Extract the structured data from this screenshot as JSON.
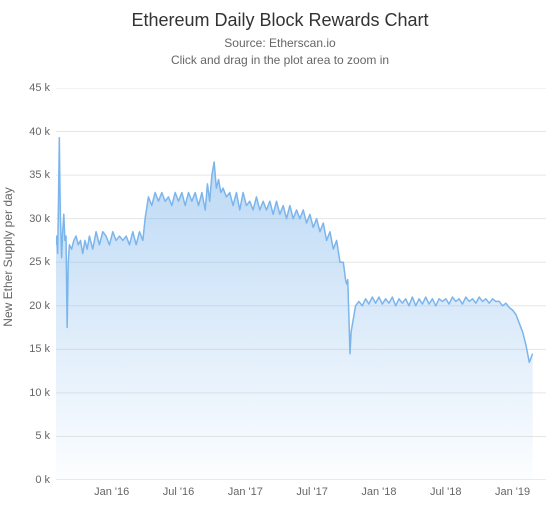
{
  "title": "Ethereum Daily Block Rewards Chart",
  "subtitle_line1": "Source: Etherscan.io",
  "subtitle_line2": "Click and drag in the plot area to zoom in",
  "y_axis_title": "New Ether Supply per day",
  "chart": {
    "type": "area",
    "background_color": "#ffffff",
    "grid_color": "#e6e6e6",
    "axis_line_color": "#ccd6eb",
    "line_color": "#7cb5ec",
    "area_fill_top": "rgba(124,181,236,0.55)",
    "area_fill_bottom": "rgba(124,181,236,0.02)",
    "title_fontsize": 18,
    "subtitle_fontsize": 12,
    "axis_label_fontsize": 12,
    "tick_fontsize": 11,
    "ylim": [
      0,
      45
    ],
    "ytick_step": 5,
    "y_ticks": [
      0,
      5,
      10,
      15,
      20,
      25,
      30,
      35,
      40,
      45
    ],
    "y_tick_labels": [
      "0 k",
      "5 k",
      "10 k",
      "15 k",
      "20 k",
      "25 k",
      "30 k",
      "35 k",
      "40 k",
      "45 k"
    ],
    "x_range_months": 44,
    "x_ticks": [
      {
        "pos": 5,
        "label": "Jan '16"
      },
      {
        "pos": 11,
        "label": "Jul '16"
      },
      {
        "pos": 17,
        "label": "Jan '17"
      },
      {
        "pos": 23,
        "label": "Jul '17"
      },
      {
        "pos": 29,
        "label": "Jan '18"
      },
      {
        "pos": 35,
        "label": "Jul '18"
      },
      {
        "pos": 41,
        "label": "Jan '19"
      }
    ],
    "series": [
      [
        0.0,
        27.0
      ],
      [
        0.05,
        28.0
      ],
      [
        0.1,
        27.5
      ],
      [
        0.15,
        26.0
      ],
      [
        0.2,
        30.0
      ],
      [
        0.3,
        39.3
      ],
      [
        0.35,
        34.0
      ],
      [
        0.4,
        30.0
      ],
      [
        0.45,
        28.0
      ],
      [
        0.5,
        25.5
      ],
      [
        0.6,
        28.5
      ],
      [
        0.7,
        30.5
      ],
      [
        0.8,
        27.5
      ],
      [
        0.9,
        28.0
      ],
      [
        1.0,
        17.5
      ],
      [
        1.1,
        25.0
      ],
      [
        1.2,
        27.0
      ],
      [
        1.4,
        26.5
      ],
      [
        1.6,
        27.5
      ],
      [
        1.8,
        28.0
      ],
      [
        2.0,
        27.0
      ],
      [
        2.2,
        27.5
      ],
      [
        2.4,
        26.0
      ],
      [
        2.6,
        27.5
      ],
      [
        2.8,
        26.5
      ],
      [
        3.0,
        28.0
      ],
      [
        3.3,
        26.5
      ],
      [
        3.6,
        28.5
      ],
      [
        3.9,
        27.0
      ],
      [
        4.2,
        28.5
      ],
      [
        4.5,
        28.0
      ],
      [
        4.8,
        27.0
      ],
      [
        5.1,
        28.5
      ],
      [
        5.4,
        27.5
      ],
      [
        5.7,
        28.0
      ],
      [
        6.0,
        27.5
      ],
      [
        6.3,
        28.0
      ],
      [
        6.6,
        27.0
      ],
      [
        6.9,
        28.5
      ],
      [
        7.2,
        27.0
      ],
      [
        7.5,
        28.5
      ],
      [
        7.8,
        27.5
      ],
      [
        8.0,
        30.0
      ],
      [
        8.3,
        32.5
      ],
      [
        8.6,
        31.5
      ],
      [
        8.9,
        33.0
      ],
      [
        9.2,
        32.0
      ],
      [
        9.5,
        33.0
      ],
      [
        9.8,
        32.0
      ],
      [
        10.1,
        32.5
      ],
      [
        10.4,
        31.5
      ],
      [
        10.7,
        33.0
      ],
      [
        11.0,
        32.0
      ],
      [
        11.3,
        33.0
      ],
      [
        11.6,
        31.5
      ],
      [
        11.9,
        33.0
      ],
      [
        12.2,
        32.0
      ],
      [
        12.5,
        33.0
      ],
      [
        12.8,
        31.5
      ],
      [
        13.1,
        33.0
      ],
      [
        13.4,
        31.0
      ],
      [
        13.6,
        34.0
      ],
      [
        13.8,
        32.0
      ],
      [
        14.0,
        35.0
      ],
      [
        14.2,
        36.5
      ],
      [
        14.4,
        33.5
      ],
      [
        14.6,
        34.5
      ],
      [
        14.8,
        33.0
      ],
      [
        15.0,
        33.5
      ],
      [
        15.3,
        32.5
      ],
      [
        15.6,
        33.0
      ],
      [
        15.9,
        31.5
      ],
      [
        16.2,
        33.0
      ],
      [
        16.5,
        31.0
      ],
      [
        16.8,
        33.0
      ],
      [
        17.1,
        31.5
      ],
      [
        17.4,
        32.0
      ],
      [
        17.7,
        31.0
      ],
      [
        18.0,
        32.5
      ],
      [
        18.3,
        31.0
      ],
      [
        18.6,
        32.0
      ],
      [
        18.9,
        31.0
      ],
      [
        19.2,
        32.0
      ],
      [
        19.5,
        30.5
      ],
      [
        19.8,
        32.0
      ],
      [
        20.1,
        30.5
      ],
      [
        20.4,
        31.5
      ],
      [
        20.7,
        30.0
      ],
      [
        21.0,
        31.5
      ],
      [
        21.3,
        30.0
      ],
      [
        21.6,
        31.0
      ],
      [
        21.9,
        30.0
      ],
      [
        22.2,
        31.0
      ],
      [
        22.5,
        29.5
      ],
      [
        22.8,
        30.5
      ],
      [
        23.1,
        29.0
      ],
      [
        23.4,
        30.0
      ],
      [
        23.7,
        28.5
      ],
      [
        24.0,
        29.5
      ],
      [
        24.3,
        27.5
      ],
      [
        24.6,
        28.5
      ],
      [
        24.9,
        26.5
      ],
      [
        25.2,
        27.5
      ],
      [
        25.5,
        25.0
      ],
      [
        25.8,
        25.0
      ],
      [
        26.0,
        23.0
      ],
      [
        26.1,
        22.5
      ],
      [
        26.2,
        23.0
      ],
      [
        26.4,
        14.5
      ],
      [
        26.5,
        17.0
      ],
      [
        26.7,
        18.5
      ],
      [
        26.9,
        20.0
      ],
      [
        27.2,
        20.5
      ],
      [
        27.5,
        20.0
      ],
      [
        27.8,
        20.8
      ],
      [
        28.1,
        20.2
      ],
      [
        28.4,
        21.0
      ],
      [
        28.7,
        20.3
      ],
      [
        29.0,
        21.0
      ],
      [
        29.3,
        20.2
      ],
      [
        29.6,
        20.8
      ],
      [
        29.9,
        20.3
      ],
      [
        30.2,
        21.0
      ],
      [
        30.5,
        20.0
      ],
      [
        30.8,
        20.8
      ],
      [
        31.1,
        20.3
      ],
      [
        31.4,
        20.8
      ],
      [
        31.7,
        20.0
      ],
      [
        32.0,
        21.0
      ],
      [
        32.3,
        20.0
      ],
      [
        32.6,
        20.8
      ],
      [
        32.9,
        20.2
      ],
      [
        33.2,
        21.0
      ],
      [
        33.5,
        20.2
      ],
      [
        33.8,
        20.8
      ],
      [
        34.1,
        20.0
      ],
      [
        34.4,
        20.8
      ],
      [
        34.7,
        20.5
      ],
      [
        35.0,
        20.8
      ],
      [
        35.3,
        20.2
      ],
      [
        35.6,
        21.0
      ],
      [
        35.9,
        20.5
      ],
      [
        36.2,
        20.8
      ],
      [
        36.5,
        20.2
      ],
      [
        36.8,
        21.0
      ],
      [
        37.1,
        20.5
      ],
      [
        37.4,
        20.8
      ],
      [
        37.7,
        20.3
      ],
      [
        38.0,
        21.0
      ],
      [
        38.3,
        20.5
      ],
      [
        38.6,
        20.8
      ],
      [
        38.9,
        20.3
      ],
      [
        39.2,
        20.8
      ],
      [
        39.5,
        20.5
      ],
      [
        39.8,
        20.5
      ],
      [
        40.1,
        20.0
      ],
      [
        40.4,
        20.3
      ],
      [
        40.7,
        19.8
      ],
      [
        41.0,
        19.5
      ],
      [
        41.3,
        19.0
      ],
      [
        41.6,
        18.0
      ],
      [
        41.9,
        17.0
      ],
      [
        42.2,
        15.5
      ],
      [
        42.5,
        13.5
      ],
      [
        42.8,
        14.5
      ]
    ]
  }
}
